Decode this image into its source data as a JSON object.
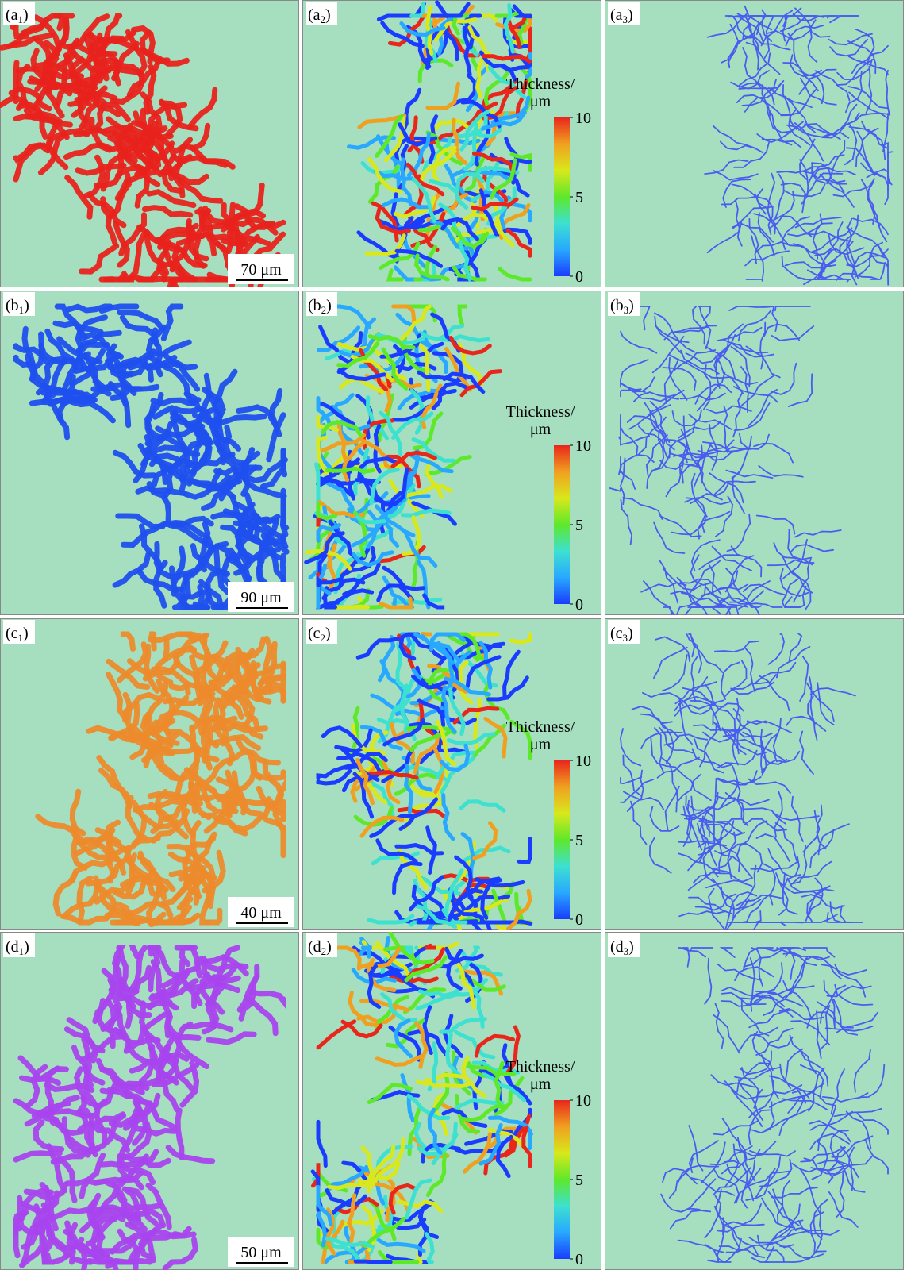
{
  "rows": [
    {
      "panels": [
        {
          "label": [
            "(a",
            "1",
            ")"
          ],
          "color": "#e8221c",
          "scale_bar": "70 μm"
        },
        {
          "label": [
            "(a",
            "2",
            ")"
          ],
          "colorbar": {
            "title": "Thickness/",
            "unit": "μm",
            "range": [
              0,
              10
            ],
            "ticks": [
              10,
              5,
              0
            ]
          }
        },
        {
          "label": [
            "(a",
            "3",
            ")"
          ],
          "color": "#4a5cf0"
        }
      ]
    },
    {
      "panels": [
        {
          "label": [
            "(b",
            "1",
            ")"
          ],
          "color": "#1f4fee",
          "scale_bar": "90 μm"
        },
        {
          "label": [
            "(b",
            "2",
            ")"
          ],
          "colorbar": {
            "title": "Thickness/",
            "unit": "μm",
            "range": [
              0,
              10
            ],
            "ticks": [
              10,
              5,
              0
            ]
          }
        },
        {
          "label": [
            "(b",
            "3",
            ")"
          ],
          "color": "#4a5cf0"
        }
      ]
    },
    {
      "panels": [
        {
          "label": [
            "(c",
            "1",
            ")"
          ],
          "color": "#ec8a2c",
          "scale_bar": "40 μm"
        },
        {
          "label": [
            "(c",
            "2",
            ")"
          ],
          "colorbar": {
            "title": "Thickness/",
            "unit": "μm",
            "range": [
              0,
              10
            ],
            "ticks": [
              10,
              5,
              0
            ]
          }
        },
        {
          "label": [
            "(c",
            "3",
            ")"
          ],
          "color": "#4a5cf0"
        }
      ]
    },
    {
      "panels": [
        {
          "label": [
            "(d",
            "1",
            ")"
          ],
          "color": "#a844ee",
          "scale_bar": "50 μm"
        },
        {
          "label": [
            "(d",
            "2",
            ")"
          ],
          "colorbar": {
            "title": "Thickness/",
            "unit": "μm",
            "range": [
              0,
              10
            ],
            "ticks": [
              10,
              5,
              0
            ]
          }
        },
        {
          "label": [
            "(d",
            "3",
            ")"
          ],
          "color": "#4a5cf0"
        }
      ]
    }
  ]
}
